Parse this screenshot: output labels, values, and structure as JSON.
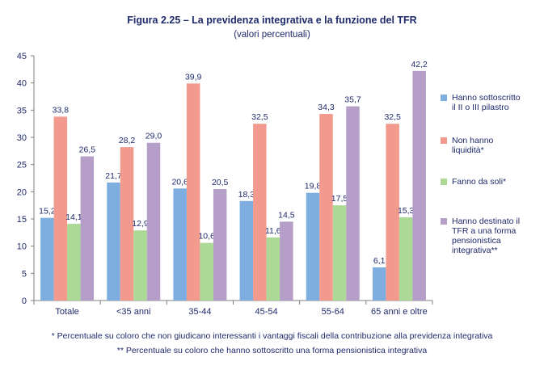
{
  "chart_data": {
    "type": "bar",
    "title": "Figura 2.25 – La previdenza integrativa e la funzione del TFR",
    "subtitle": "(valori percentuali)",
    "categories": [
      "Totale",
      "<35 anni",
      "35-44",
      "45-54",
      "55-64",
      "65 anni e oltre"
    ],
    "series": [
      {
        "name": "Hanno sottoscritto\nil II o III pilastro",
        "color": "#7eaedf",
        "values": [
          15.2,
          21.7,
          20.6,
          18.3,
          19.8,
          6.1
        ],
        "labels": [
          "15,2",
          "21,7",
          "20,6",
          "18,3",
          "19,8",
          "6,1"
        ]
      },
      {
        "name": "Non hanno\nliquidità*",
        "color": "#f39a8f",
        "values": [
          33.8,
          28.2,
          39.9,
          32.5,
          34.3,
          32.5
        ],
        "labels": [
          "33,8",
          "28,2",
          "39,9",
          "32,5",
          "34,3",
          "32,5"
        ]
      },
      {
        "name": "Fanno da soli*",
        "color": "#acd995",
        "values": [
          14.1,
          12.9,
          10.6,
          11.6,
          17.5,
          15.3
        ],
        "labels": [
          "14,1",
          "12,9",
          "10,6",
          "11,6",
          "17,5",
          "15,3"
        ]
      },
      {
        "name": "Hanno destinato il\nTFR a una forma\npensionistica\nintegrativa**",
        "color": "#b59ec8",
        "values": [
          26.5,
          29.0,
          20.5,
          14.5,
          35.7,
          42.2
        ],
        "labels": [
          "26,5",
          "29,0",
          "20,5",
          "14,5",
          "35,7",
          "42,2"
        ]
      }
    ],
    "ylim": [
      0,
      45
    ],
    "yticks": [
      0,
      5,
      10,
      15,
      20,
      25,
      30,
      35,
      40,
      45
    ],
    "grid": false,
    "legend": "right"
  },
  "notes": [
    "* Percentuale su coloro che non giudicano interessanti i vantaggi fiscali della contribuzione alla previdenza integrativa",
    "** Percentuale su coloro che hanno sottoscritto una forma pensionistica integrativa"
  ]
}
